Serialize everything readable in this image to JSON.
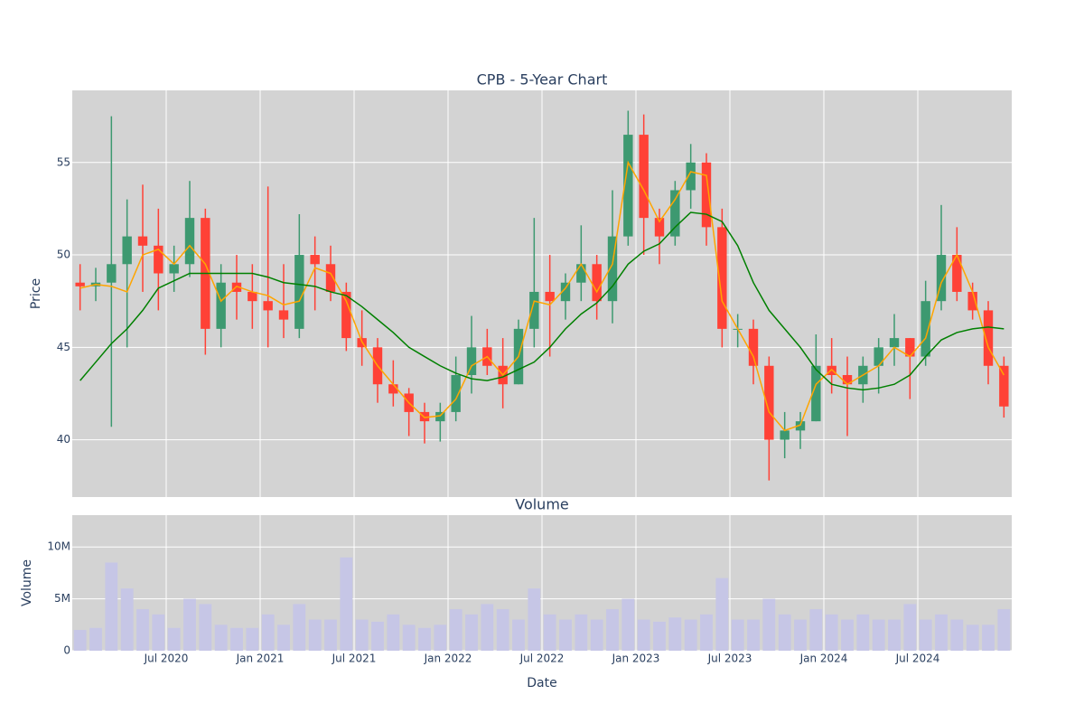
{
  "chart_data": [
    {
      "type": "candlestick",
      "title": "CPB - 5-Year Chart",
      "y_label": "Price",
      "x": [
        "2020-01",
        "2020-02",
        "2020-03",
        "2020-04",
        "2020-05",
        "2020-06",
        "2020-07",
        "2020-08",
        "2020-09",
        "2020-10",
        "2020-11",
        "2020-12",
        "2021-01",
        "2021-02",
        "2021-03",
        "2021-04",
        "2021-05",
        "2021-06",
        "2021-07",
        "2021-08",
        "2021-09",
        "2021-10",
        "2021-11",
        "2021-12",
        "2022-01",
        "2022-02",
        "2022-03",
        "2022-04",
        "2022-05",
        "2022-06",
        "2022-07",
        "2022-08",
        "2022-09",
        "2022-10",
        "2022-11",
        "2022-12",
        "2023-01",
        "2023-02",
        "2023-03",
        "2023-04",
        "2023-05",
        "2023-06",
        "2023-07",
        "2023-08",
        "2023-09",
        "2023-10",
        "2023-11",
        "2023-12",
        "2024-01",
        "2024-02",
        "2024-03",
        "2024-04",
        "2024-05",
        "2024-06",
        "2024-07",
        "2024-08",
        "2024-09",
        "2024-10",
        "2024-11",
        "2024-12"
      ],
      "open": [
        48.5,
        48.3,
        48.5,
        49.5,
        51,
        50.5,
        49,
        49.5,
        52,
        46,
        48.5,
        48,
        47.5,
        47,
        46,
        50,
        49.5,
        48,
        45.5,
        45,
        43,
        42.5,
        41.5,
        41,
        41.5,
        43.5,
        45,
        44,
        43,
        46,
        48,
        47.5,
        48.5,
        49.5,
        47.5,
        51,
        56.5,
        52,
        51,
        53.5,
        55,
        51.5,
        46,
        46,
        44,
        40,
        40.5,
        41,
        44,
        43.5,
        43,
        44,
        45,
        45.5,
        44.5,
        47.5,
        50,
        48,
        47,
        44
      ],
      "high": [
        49.5,
        49.3,
        57.5,
        53,
        53.8,
        52.5,
        50.5,
        54,
        52.5,
        49.5,
        50,
        49.5,
        53.7,
        49.5,
        52.2,
        51,
        50.5,
        48.5,
        47,
        45.5,
        44.3,
        42.8,
        42,
        42,
        44.5,
        46.7,
        46,
        45.5,
        46.5,
        52,
        50,
        49,
        51.6,
        50,
        53.5,
        57.8,
        57.6,
        52.5,
        54,
        56,
        55.5,
        52.5,
        46.8,
        46.5,
        44.5,
        41.5,
        41.5,
        45.7,
        45.5,
        44.5,
        44.5,
        45.5,
        46.8,
        45.5,
        48.6,
        52.7,
        51.5,
        48.5,
        47.5,
        44.5
      ],
      "low": [
        47,
        47.5,
        40.7,
        45,
        48,
        47,
        48,
        48.8,
        44.6,
        45,
        46.5,
        46,
        45,
        45.5,
        45.5,
        47,
        47.5,
        44.8,
        44,
        42,
        41.8,
        40.2,
        39.8,
        39.9,
        41,
        42.5,
        43.5,
        41.7,
        43,
        45,
        44.5,
        46.5,
        47.5,
        46.5,
        46.3,
        50.5,
        50,
        49.5,
        50.5,
        52.5,
        50.5,
        45,
        45,
        43,
        37.8,
        39,
        39.5,
        41,
        42.5,
        40.2,
        42,
        42.5,
        44,
        42.2,
        44,
        47,
        47.5,
        46.5,
        43,
        41.2
      ],
      "close": [
        48.3,
        48.5,
        49.5,
        51,
        50.5,
        49,
        49.5,
        52,
        46,
        48.5,
        48,
        47.5,
        47,
        46.5,
        50,
        49.5,
        48,
        45.5,
        45,
        43,
        42.5,
        41.5,
        41,
        41.5,
        43.5,
        45,
        44,
        43,
        46,
        48,
        47.5,
        48.5,
        49.5,
        47.5,
        51,
        56.5,
        52,
        51,
        53.5,
        55,
        51.5,
        46,
        46,
        44,
        40,
        40.5,
        41,
        44,
        43.5,
        43,
        44,
        45,
        45.5,
        44.5,
        47.5,
        50,
        48,
        47,
        44,
        41.8
      ],
      "increasing_color": "#3d9970",
      "decreasing_color": "#ff4136",
      "lines": [
        {
          "color": "orange",
          "values": [
            48.2,
            48.4,
            48.3,
            48,
            50,
            50.3,
            49.5,
            50.5,
            49.5,
            47.5,
            48.3,
            48,
            47.8,
            47.3,
            47.5,
            49.3,
            49,
            47.5,
            45.3,
            44,
            43,
            42,
            41.2,
            41.3,
            42.2,
            44,
            44.5,
            43.5,
            44.5,
            47.5,
            47.3,
            48.2,
            49.5,
            48,
            49.5,
            55,
            53.5,
            51.8,
            53,
            54.5,
            54.3,
            47.5,
            46,
            44.5,
            41.5,
            40.5,
            40.8,
            43,
            43.8,
            43,
            43.5,
            44,
            45,
            44.5,
            45.5,
            48.5,
            50,
            48,
            45,
            43.5
          ]
        },
        {
          "color": "green",
          "values": [
            43.2,
            44.2,
            45.2,
            46,
            47,
            48.2,
            48.6,
            49,
            49,
            49,
            49,
            49,
            48.8,
            48.5,
            48.4,
            48.3,
            48,
            47.8,
            47.2,
            46.5,
            45.8,
            45,
            44.5,
            44,
            43.6,
            43.3,
            43.2,
            43.4,
            43.8,
            44.2,
            45,
            46,
            46.8,
            47.4,
            48.3,
            49.5,
            50.2,
            50.6,
            51.5,
            52.3,
            52.2,
            51.8,
            50.5,
            48.5,
            47,
            46,
            45,
            43.8,
            43,
            42.8,
            42.7,
            42.8,
            43,
            43.5,
            44.5,
            45.4,
            45.8,
            46,
            46.1,
            46
          ]
        }
      ],
      "xlim": [
        "2020-01",
        "2025-01"
      ],
      "xticks": [
        {
          "value": "2020-07",
          "label": "Jul 2020"
        },
        {
          "value": "2021-01",
          "label": "Jan 2021"
        },
        {
          "value": "2021-07",
          "label": "Jul 2021"
        },
        {
          "value": "2022-01",
          "label": "Jan 2022"
        },
        {
          "value": "2022-07",
          "label": "Jul 2022"
        },
        {
          "value": "2023-01",
          "label": "Jan 2023"
        },
        {
          "value": "2023-07",
          "label": "Jul 2023"
        },
        {
          "value": "2024-01",
          "label": "Jan 2024"
        },
        {
          "value": "2024-07",
          "label": "Jul 2024"
        }
      ],
      "ylim": [
        36.9,
        58.9
      ],
      "yticks": [
        40,
        45,
        50,
        55
      ],
      "grid": true
    },
    {
      "type": "bar",
      "title": "Volume",
      "x_label": "Date",
      "y_label": "Volume",
      "x": [
        "2020-01",
        "2020-02",
        "2020-03",
        "2020-04",
        "2020-05",
        "2020-06",
        "2020-07",
        "2020-08",
        "2020-09",
        "2020-10",
        "2020-11",
        "2020-12",
        "2021-01",
        "2021-02",
        "2021-03",
        "2021-04",
        "2021-05",
        "2021-06",
        "2021-07",
        "2021-08",
        "2021-09",
        "2021-10",
        "2021-11",
        "2021-12",
        "2022-01",
        "2022-02",
        "2022-03",
        "2022-04",
        "2022-05",
        "2022-06",
        "2022-07",
        "2022-08",
        "2022-09",
        "2022-10",
        "2022-11",
        "2022-12",
        "2023-01",
        "2023-02",
        "2023-03",
        "2023-04",
        "2023-05",
        "2023-06",
        "2023-07",
        "2023-08",
        "2023-09",
        "2023-10",
        "2023-11",
        "2023-12",
        "2024-01",
        "2024-02",
        "2024-03",
        "2024-04",
        "2024-05",
        "2024-06",
        "2024-07",
        "2024-08",
        "2024-09",
        "2024-10",
        "2024-11",
        "2024-12"
      ],
      "values": [
        2000000,
        2200000,
        8500000,
        6000000,
        4000000,
        3500000,
        2200000,
        5000000,
        4500000,
        2500000,
        2200000,
        2200000,
        3500000,
        2500000,
        4500000,
        3000000,
        3000000,
        9000000,
        3000000,
        2800000,
        3500000,
        2500000,
        2200000,
        2500000,
        4000000,
        3500000,
        4500000,
        4000000,
        3000000,
        6000000,
        3500000,
        3000000,
        3500000,
        3000000,
        4000000,
        5000000,
        3000000,
        2800000,
        3200000,
        3000000,
        3500000,
        7000000,
        3000000,
        3000000,
        5000000,
        3500000,
        3000000,
        4000000,
        3500000,
        3000000,
        3500000,
        3000000,
        3000000,
        4500000,
        3000000,
        3500000,
        3000000,
        2500000,
        2500000,
        4000000
      ],
      "color": "#c6c6e6",
      "xlim": [
        "2020-01",
        "2025-01"
      ],
      "xticks": [
        {
          "value": "2020-07",
          "label": "Jul 2020"
        },
        {
          "value": "2021-01",
          "label": "Jan 2021"
        },
        {
          "value": "2021-07",
          "label": "Jul 2021"
        },
        {
          "value": "2022-01",
          "label": "Jan 2022"
        },
        {
          "value": "2022-07",
          "label": "Jul 2022"
        },
        {
          "value": "2023-01",
          "label": "Jan 2023"
        },
        {
          "value": "2023-07",
          "label": "Jul 2023"
        },
        {
          "value": "2024-01",
          "label": "Jan 2024"
        },
        {
          "value": "2024-07",
          "label": "Jul 2024"
        }
      ],
      "ylim": [
        0,
        13070000
      ],
      "yticks": [
        0,
        {
          "value": 5000000,
          "label": "5M"
        },
        {
          "value": 10000000,
          "label": "10M"
        }
      ],
      "grid": true
    }
  ]
}
